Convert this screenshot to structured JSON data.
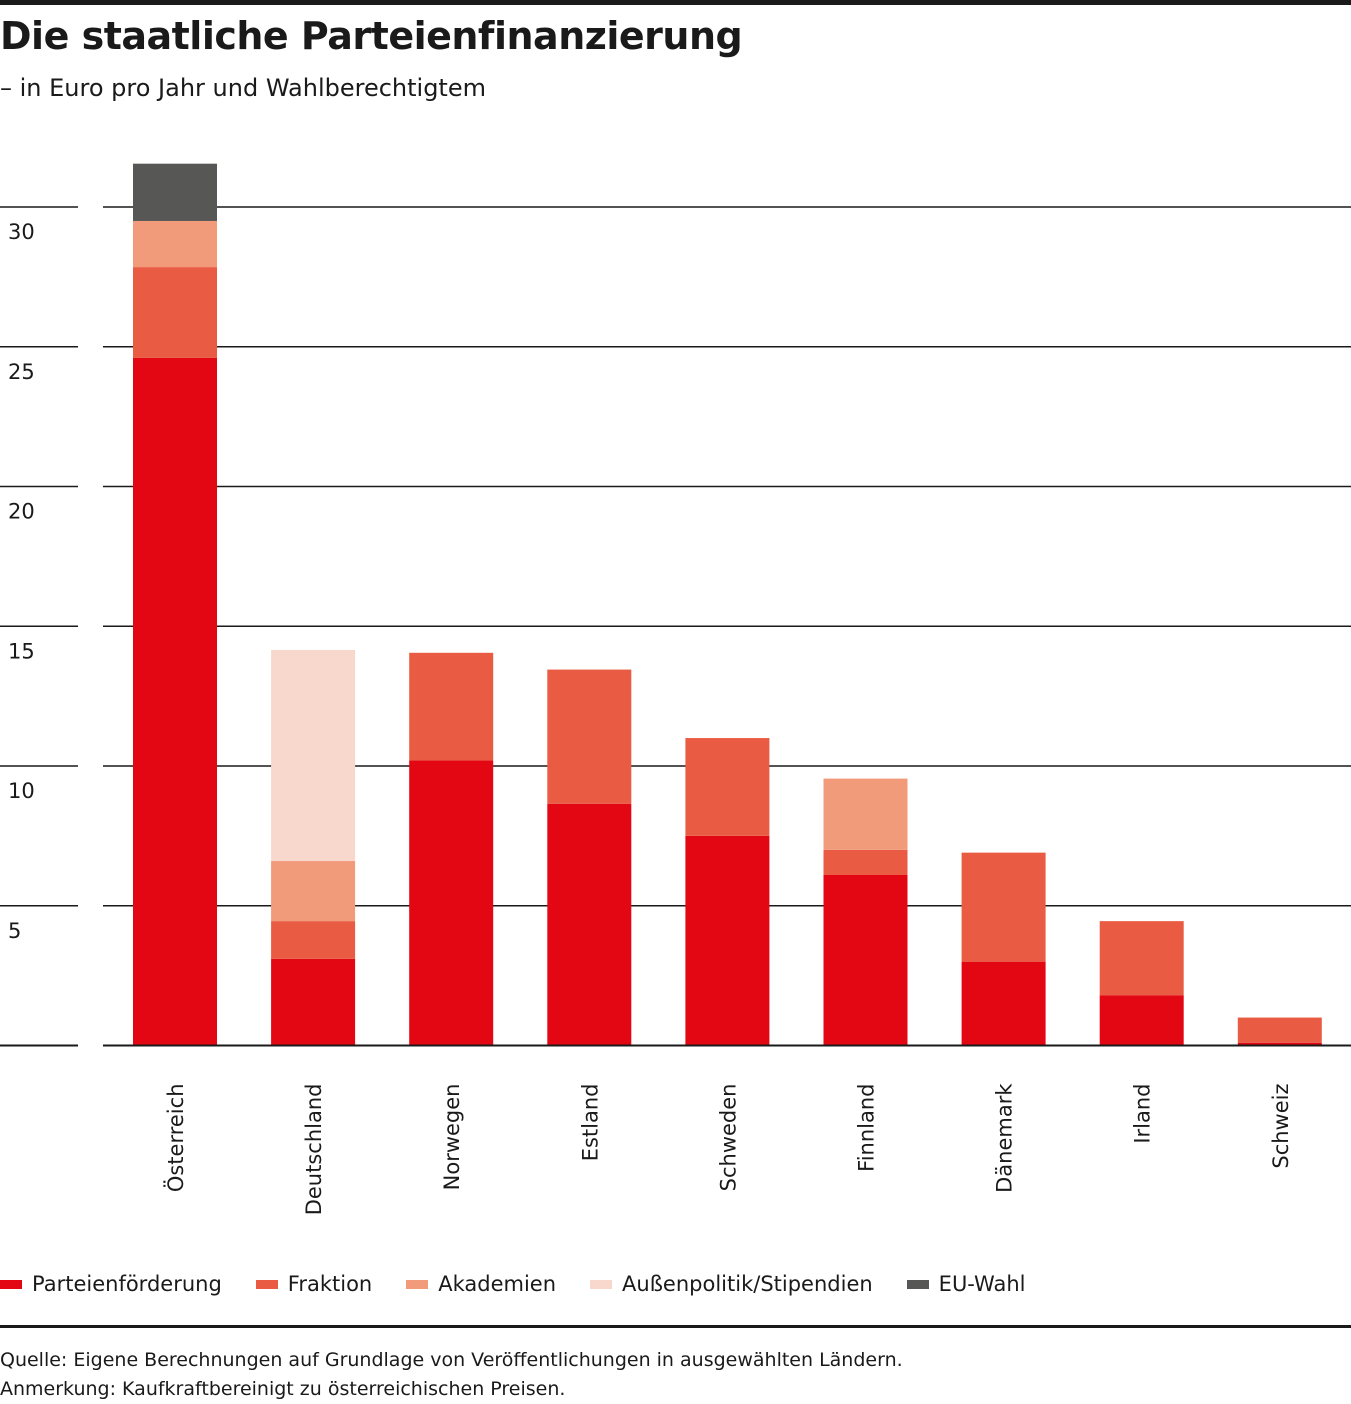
{
  "header": {
    "title": "Die staatliche Parteienfinanzierung",
    "subtitle": "– in Euro pro Jahr und Wahlberechtigtem"
  },
  "footer": {
    "source": "Quelle: Eigene Berechnungen auf Grundlage von Veröffentlichungen in ausgewählten Ländern. Anmerkung: Kaufkraftbereinigt zu österreichischen Preisen."
  },
  "chart_data": {
    "type": "bar",
    "stacked": true,
    "title": "Die staatliche Parteienfinanzierung",
    "subtitle": "– in Euro pro Jahr und Wahlberechtigtem",
    "xlabel": "",
    "ylabel": "",
    "ylim": [
      0,
      30
    ],
    "yticks": [
      5,
      10,
      15,
      20,
      25,
      30
    ],
    "grid": true,
    "legend_position": "bottom",
    "categories": [
      "Österreich",
      "Deutschland",
      "Norwegen",
      "Estland",
      "Schweden",
      "Finnland",
      "Dänemark",
      "Irland",
      "Schweiz"
    ],
    "series": [
      {
        "name": "Parteienförderung",
        "color": "#e30613",
        "values": [
          24.6,
          3.1,
          10.2,
          8.65,
          7.5,
          6.1,
          3.0,
          1.8,
          0.1
        ]
      },
      {
        "name": "Fraktion",
        "color": "#e95c43",
        "values": [
          3.25,
          1.35,
          3.85,
          4.8,
          3.5,
          0.9,
          3.9,
          2.65,
          0.9
        ]
      },
      {
        "name": "Akademien",
        "color": "#f19b7b",
        "values": [
          1.65,
          2.15,
          0,
          0,
          0,
          2.55,
          0,
          0,
          0
        ]
      },
      {
        "name": "Außenpolitik/Stipendien",
        "color": "#f8d8cd",
        "values": [
          0,
          7.55,
          0,
          0,
          0,
          0,
          0,
          0,
          0
        ]
      },
      {
        "name": "EU-Wahl",
        "color": "#575756",
        "values": [
          2.05,
          0,
          0,
          0,
          0,
          0,
          0,
          0,
          0
        ]
      }
    ]
  }
}
